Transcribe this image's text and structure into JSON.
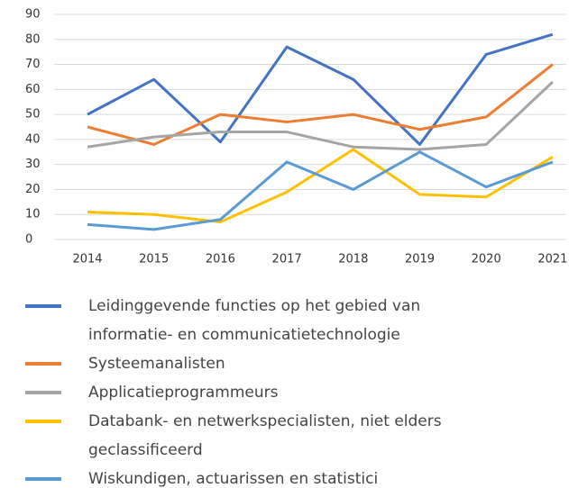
{
  "chart_data": {
    "type": "line",
    "categories": [
      "2014",
      "2015",
      "2016",
      "2017",
      "2018",
      "2019",
      "2020",
      "2021"
    ],
    "series": [
      {
        "name": "Leidinggevende functies op het gebied van informatie- en communicatietechnologie",
        "color": "#4472c4",
        "values": [
          50,
          64,
          39,
          77,
          64,
          38,
          74,
          82
        ]
      },
      {
        "name": "Systeemanalisten",
        "color": "#ed7d31",
        "values": [
          45,
          38,
          50,
          47,
          50,
          44,
          49,
          70
        ]
      },
      {
        "name": "Applicatieprogrammeurs",
        "color": "#a5a5a5",
        "values": [
          37,
          41,
          43,
          43,
          37,
          36,
          38,
          63
        ]
      },
      {
        "name": "Databank- en netwerkspecialisten, niet elders geclassificeerd",
        "color": "#ffc000",
        "values": [
          11,
          10,
          7,
          19,
          36,
          18,
          17,
          33
        ]
      },
      {
        "name": "Wiskundigen, actuarissen en statistici",
        "color": "#5b9bd5",
        "values": [
          6,
          4,
          8,
          31,
          20,
          35,
          21,
          31
        ]
      }
    ],
    "ylim": [
      0,
      90
    ],
    "yticks": [
      0,
      10,
      20,
      30,
      40,
      50,
      60,
      70,
      80,
      90
    ],
    "grid": true,
    "legend": "bottom"
  }
}
